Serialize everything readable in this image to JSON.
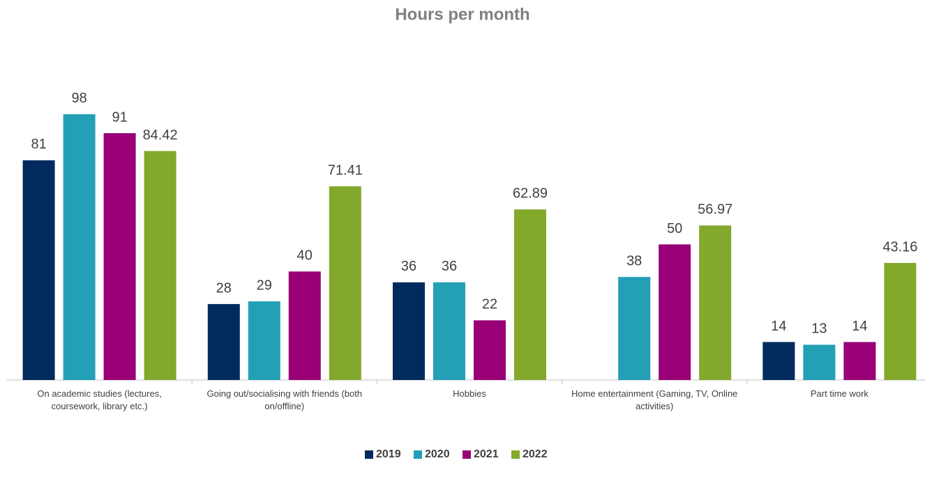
{
  "chart_data": {
    "type": "bar",
    "title": "Hours per month",
    "categories": [
      "On academic studies (lectures, coursework, library etc.)",
      "Going out/socialising with friends (both on/offline)",
      "Hobbies",
      "Home entertainment (Gaming, TV, Online activities)",
      "Part time work"
    ],
    "series": [
      {
        "name": "2019",
        "color": "#002b5c",
        "values": [
          81,
          28,
          36,
          null,
          14
        ]
      },
      {
        "name": "2020",
        "color": "#23a0b5",
        "values": [
          98,
          29,
          36,
          38,
          13
        ]
      },
      {
        "name": "2021",
        "color": "#990077",
        "values": [
          91,
          40,
          22,
          50,
          14
        ]
      },
      {
        "name": "2022",
        "color": "#82a82c",
        "values": [
          84.42,
          71.41,
          62.89,
          56.97,
          43.16
        ]
      }
    ],
    "ylim": [
      0,
      100
    ],
    "legend": "bottom"
  }
}
